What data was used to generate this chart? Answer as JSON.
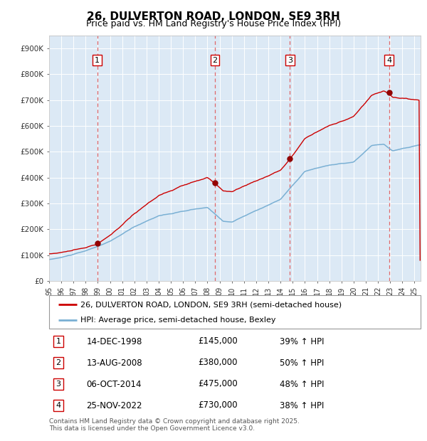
{
  "title": "26, DULVERTON ROAD, LONDON, SE9 3RH",
  "subtitle": "Price paid vs. HM Land Registry's House Price Index (HPI)",
  "legend_property": "26, DULVERTON ROAD, LONDON, SE9 3RH (semi-detached house)",
  "legend_hpi": "HPI: Average price, semi-detached house, Bexley",
  "footer": "Contains HM Land Registry data © Crown copyright and database right 2025.\nThis data is licensed under the Open Government Licence v3.0.",
  "transactions": [
    {
      "num": 1,
      "date": "14-DEC-1998",
      "year": 1998.95,
      "price": 145000,
      "pct": "39%",
      "dir": "↑"
    },
    {
      "num": 2,
      "date": "13-AUG-2008",
      "year": 2008.62,
      "price": 380000,
      "pct": "50%",
      "dir": "↑"
    },
    {
      "num": 3,
      "date": "06-OCT-2014",
      "year": 2014.77,
      "price": 475000,
      "pct": "48%",
      "dir": "↑"
    },
    {
      "num": 4,
      "date": "25-NOV-2022",
      "year": 2022.9,
      "price": 730000,
      "pct": "38%",
      "dir": "↑"
    }
  ],
  "property_color": "#cc0000",
  "hpi_color": "#7ab0d4",
  "plot_bg": "#dce9f5",
  "grid_color": "#ffffff",
  "dashed_color": "#e05050",
  "ylim": [
    0,
    950000
  ],
  "yticks": [
    0,
    100000,
    200000,
    300000,
    400000,
    500000,
    600000,
    700000,
    800000,
    900000
  ],
  "ytick_labels": [
    "£0",
    "£100K",
    "£200K",
    "£300K",
    "£400K",
    "£500K",
    "£600K",
    "£700K",
    "£800K",
    "£900K"
  ],
  "xmin": 1995.0,
  "xmax": 2025.5,
  "xticks": [
    1995,
    1996,
    1997,
    1998,
    1999,
    2000,
    2001,
    2002,
    2003,
    2004,
    2005,
    2006,
    2007,
    2008,
    2009,
    2010,
    2011,
    2012,
    2013,
    2014,
    2015,
    2016,
    2017,
    2018,
    2019,
    2020,
    2021,
    2022,
    2023,
    2024,
    2025
  ]
}
